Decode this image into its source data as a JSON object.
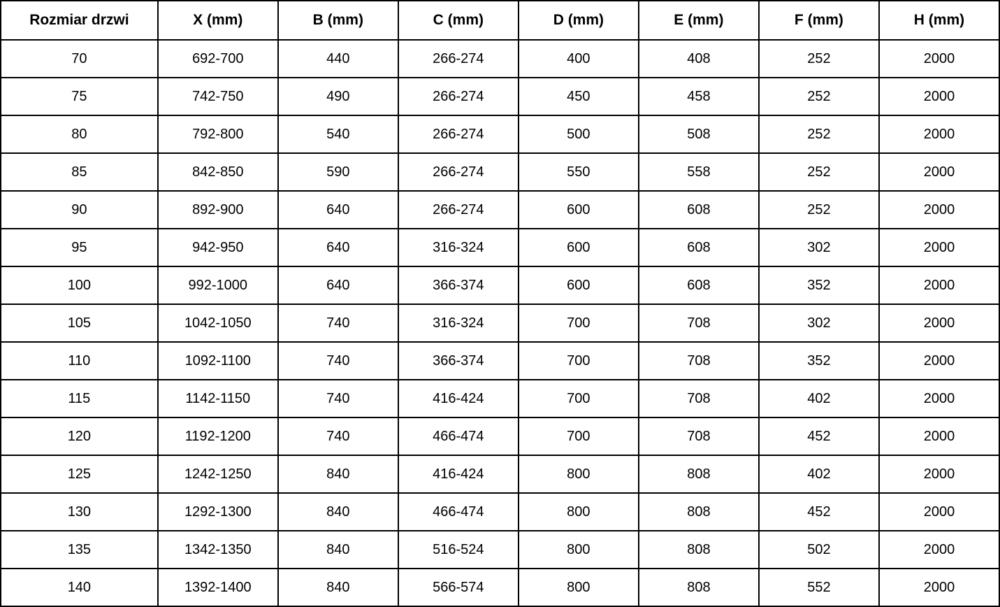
{
  "table": {
    "name": "door-dimensions-table",
    "columns": [
      "Rozmiar drzwi",
      "X (mm)",
      "B (mm)",
      "C (mm)",
      "D (mm)",
      "E (mm)",
      "F (mm)",
      "H (mm)"
    ],
    "rows": [
      [
        "70",
        "692-700",
        "440",
        "266-274",
        "400",
        "408",
        "252",
        "2000"
      ],
      [
        "75",
        "742-750",
        "490",
        "266-274",
        "450",
        "458",
        "252",
        "2000"
      ],
      [
        "80",
        "792-800",
        "540",
        "266-274",
        "500",
        "508",
        "252",
        "2000"
      ],
      [
        "85",
        "842-850",
        "590",
        "266-274",
        "550",
        "558",
        "252",
        "2000"
      ],
      [
        "90",
        "892-900",
        "640",
        "266-274",
        "600",
        "608",
        "252",
        "2000"
      ],
      [
        "95",
        "942-950",
        "640",
        "316-324",
        "600",
        "608",
        "302",
        "2000"
      ],
      [
        "100",
        "992-1000",
        "640",
        "366-374",
        "600",
        "608",
        "352",
        "2000"
      ],
      [
        "105",
        "1042-1050",
        "740",
        "316-324",
        "700",
        "708",
        "302",
        "2000"
      ],
      [
        "110",
        "1092-1100",
        "740",
        "366-374",
        "700",
        "708",
        "352",
        "2000"
      ],
      [
        "115",
        "1142-1150",
        "740",
        "416-424",
        "700",
        "708",
        "402",
        "2000"
      ],
      [
        "120",
        "1192-1200",
        "740",
        "466-474",
        "700",
        "708",
        "452",
        "2000"
      ],
      [
        "125",
        "1242-1250",
        "840",
        "416-424",
        "800",
        "808",
        "402",
        "2000"
      ],
      [
        "130",
        "1292-1300",
        "840",
        "466-474",
        "800",
        "808",
        "452",
        "2000"
      ],
      [
        "135",
        "1342-1350",
        "840",
        "516-524",
        "800",
        "808",
        "502",
        "2000"
      ],
      [
        "140",
        "1392-1400",
        "840",
        "566-574",
        "800",
        "808",
        "552",
        "2000"
      ]
    ]
  },
  "colors": {
    "border": "#000000",
    "background": "#ffffff",
    "text": "#000000"
  }
}
